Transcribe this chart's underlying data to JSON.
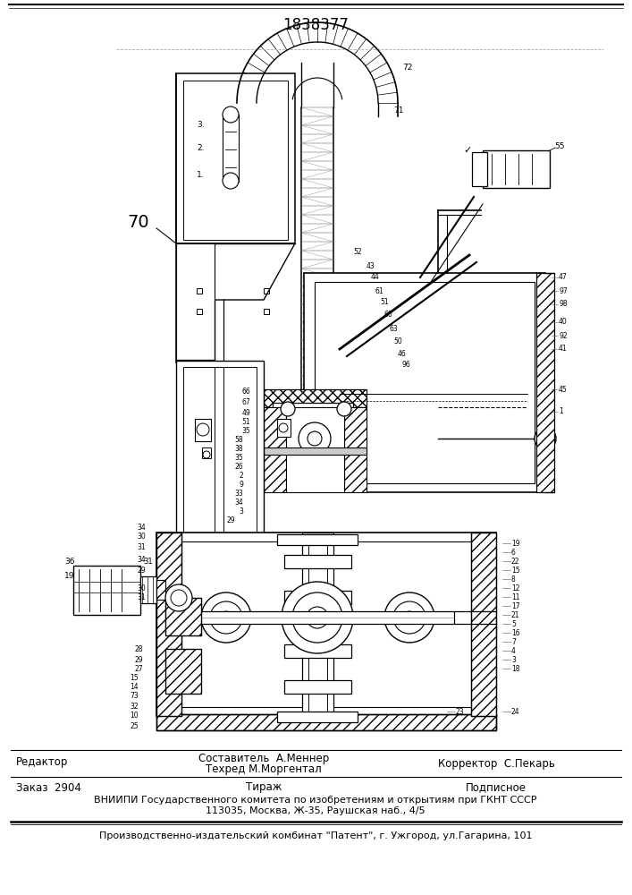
{
  "patent_number": "1838377",
  "background_color": "#ffffff",
  "footer": {
    "line1_left": "Редактор",
    "line1_center_top": "Составитель  А.Меннер",
    "line1_center_bottom": "Техред М.Моргентал",
    "line1_right": "Корректор  С.Пекарь",
    "line2_col1": "Заказ  2904",
    "line2_col2": "Тираж",
    "line2_col3": "Подписное",
    "line3": "ВНИИПИ Государственного комитета по изобретениям и открытиям при ГКНТ СССР",
    "line4": "113035, Москва, Ж-35, Раушская наб., 4/5",
    "line5": "Производственно-издательский комбинат \"Патент\", г. Ужгород, ул.Гагарина, 101"
  },
  "figsize": [
    7.07,
    10.0
  ],
  "dpi": 100
}
